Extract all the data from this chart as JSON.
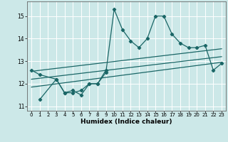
{
  "title": "",
  "xlabel": "Humidex (Indice chaleur)",
  "background_color": "#cce8e8",
  "grid_color": "#ffffff",
  "line_color": "#1a6666",
  "xlim": [
    -0.5,
    23.5
  ],
  "ylim": [
    10.8,
    15.65
  ],
  "xticks": [
    0,
    1,
    2,
    3,
    4,
    5,
    6,
    7,
    8,
    9,
    10,
    11,
    12,
    13,
    14,
    15,
    16,
    17,
    18,
    19,
    20,
    21,
    22,
    23
  ],
  "yticks": [
    11,
    12,
    13,
    14,
    15
  ],
  "line_width": 0.9,
  "marker_size": 2.2,
  "series1_x": [
    0,
    1,
    3,
    4,
    5,
    6,
    7,
    8,
    9,
    10,
    11,
    12,
    13,
    14,
    15,
    16,
    17,
    18,
    19,
    20,
    21,
    22,
    23
  ],
  "series1_y": [
    12.6,
    12.4,
    12.2,
    11.6,
    11.6,
    11.7,
    12.0,
    12.0,
    12.5,
    15.3,
    14.4,
    13.9,
    13.6,
    14.0,
    15.0,
    15.0,
    14.2,
    13.8,
    13.6,
    13.6,
    13.7,
    12.6,
    12.9
  ],
  "series2_x": [
    1,
    3,
    4,
    5,
    6,
    7,
    8,
    9
  ],
  "series2_y": [
    11.3,
    12.2,
    11.6,
    11.7,
    11.5,
    12.0,
    12.0,
    12.6
  ],
  "trend1_x": [
    0,
    23
  ],
  "trend1_y": [
    12.55,
    13.55
  ],
  "trend2_x": [
    0,
    23
  ],
  "trend2_y": [
    12.2,
    13.2
  ],
  "trend3_x": [
    0,
    23
  ],
  "trend3_y": [
    11.85,
    12.95
  ]
}
